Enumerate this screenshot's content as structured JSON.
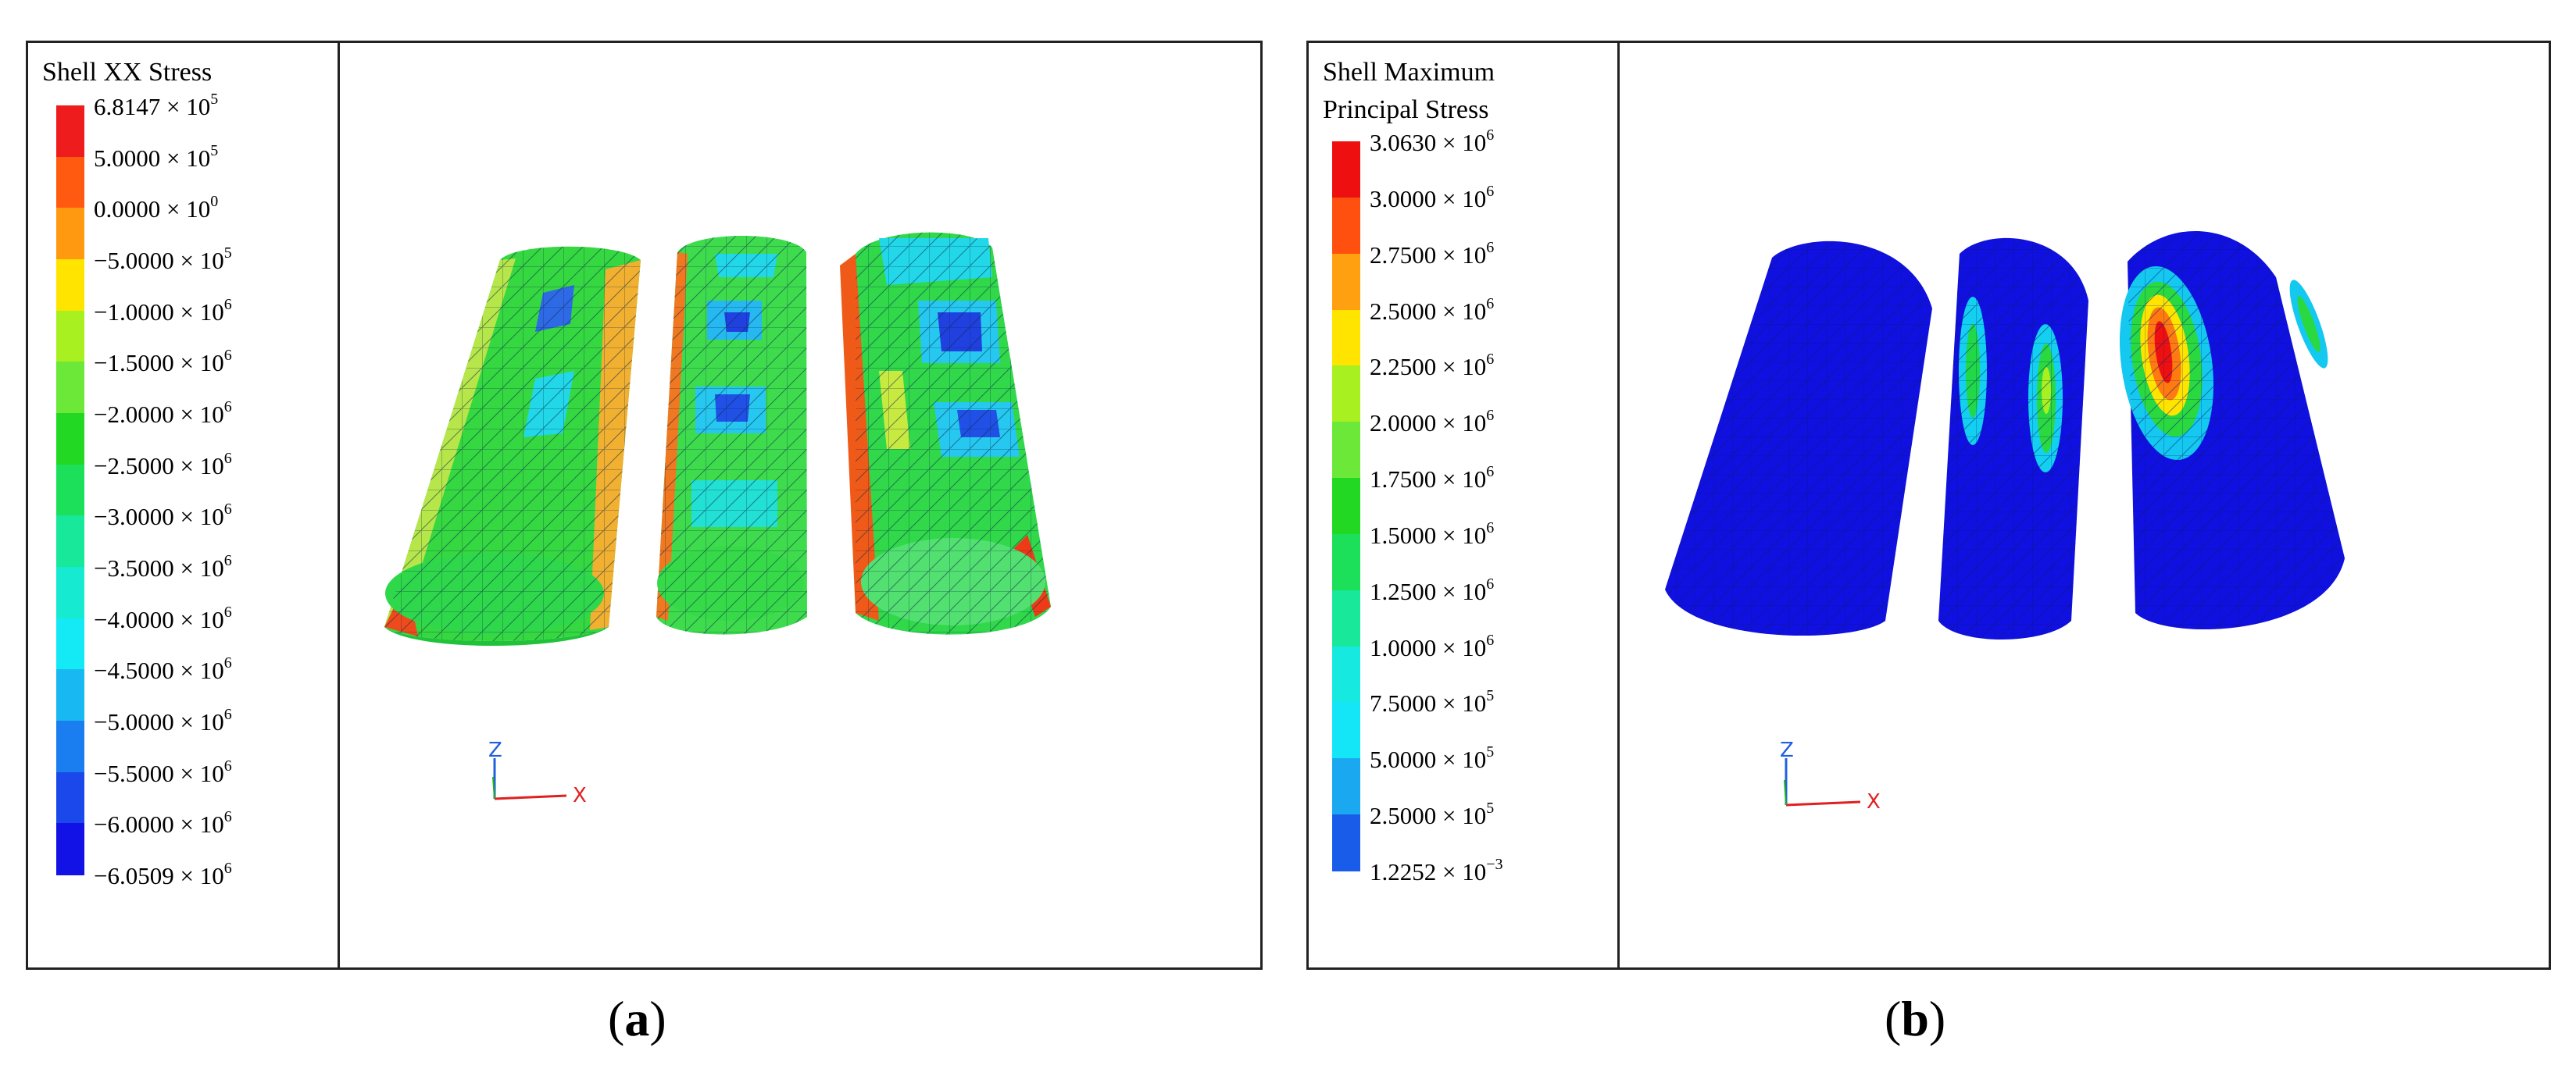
{
  "panels": {
    "a": {
      "legend_title": [
        "Shell XX Stress"
      ],
      "levels": [
        {
          "label": "6.8147 × 10",
          "exp": "5",
          "color": "#ee1c1c"
        },
        {
          "label": "5.0000 × 10",
          "exp": "5",
          "color": "#ff5a10"
        },
        {
          "label": "0.0000 × 10",
          "exp": "0",
          "color": "#ff9a10"
        },
        {
          "label": "−5.0000 × 10",
          "exp": "5",
          "color": "#ffe400"
        },
        {
          "label": "−1.0000 × 10",
          "exp": "6",
          "color": "#a8f020"
        },
        {
          "label": "−1.5000 × 10",
          "exp": "6",
          "color": "#6ce838"
        },
        {
          "label": "−2.0000 × 10",
          "exp": "6",
          "color": "#22d822"
        },
        {
          "label": "−2.5000 × 10",
          "exp": "6",
          "color": "#1ce05a"
        },
        {
          "label": "−3.0000 × 10",
          "exp": "6",
          "color": "#18e89a"
        },
        {
          "label": "−3.5000 × 10",
          "exp": "6",
          "color": "#16ead0"
        },
        {
          "label": "−4.0000 × 10",
          "exp": "6",
          "color": "#14eaf6"
        },
        {
          "label": "−4.5000 × 10",
          "exp": "6",
          "color": "#18b8f2"
        },
        {
          "label": "−5.0000 × 10",
          "exp": "6",
          "color": "#1a7ef0"
        },
        {
          "label": "−5.5000 × 10",
          "exp": "6",
          "color": "#1a48ea"
        },
        {
          "label": "−6.0000 × 10",
          "exp": "6",
          "color": "#1212e6"
        },
        {
          "label": "−6.0509 × 10",
          "exp": "6",
          "color": "#1212e6"
        }
      ],
      "caption": "a"
    },
    "b": {
      "legend_title": [
        "Shell Maximum",
        "Principal Stress"
      ],
      "levels": [
        {
          "label": "3.0630 × 10",
          "exp": "6",
          "color": "#ee1010"
        },
        {
          "label": "3.0000 × 10",
          "exp": "6",
          "color": "#ff5010"
        },
        {
          "label": "2.7500 × 10",
          "exp": "6",
          "color": "#ffa010"
        },
        {
          "label": "2.5000 × 10",
          "exp": "6",
          "color": "#ffe400"
        },
        {
          "label": "2.2500 × 10",
          "exp": "6",
          "color": "#a8f020"
        },
        {
          "label": "2.0000 × 10",
          "exp": "6",
          "color": "#6ce838"
        },
        {
          "label": "1.7500 × 10",
          "exp": "6",
          "color": "#22d822"
        },
        {
          "label": "1.5000 × 10",
          "exp": "6",
          "color": "#1ce05a"
        },
        {
          "label": "1.2500 × 10",
          "exp": "6",
          "color": "#18e89a"
        },
        {
          "label": "1.0000 × 10",
          "exp": "6",
          "color": "#16eae0"
        },
        {
          "label": "7.5000 × 10",
          "exp": "5",
          "color": "#14e6f8"
        },
        {
          "label": "5.0000 × 10",
          "exp": "5",
          "color": "#1aa8f0"
        },
        {
          "label": "2.5000 × 10",
          "exp": "5",
          "color": "#1a5cea"
        },
        {
          "label": "1.2252 × 10",
          "exp": "−3",
          "color": "#1212e6"
        }
      ],
      "caption": "b"
    }
  },
  "axes": {
    "z": "Z",
    "x": "X"
  },
  "colors": {
    "frame": "#222222",
    "mesh": "#0b2a4a",
    "axis_x": "#e02020",
    "axis_z": "#2060e0",
    "axis_y": "#20b020"
  }
}
